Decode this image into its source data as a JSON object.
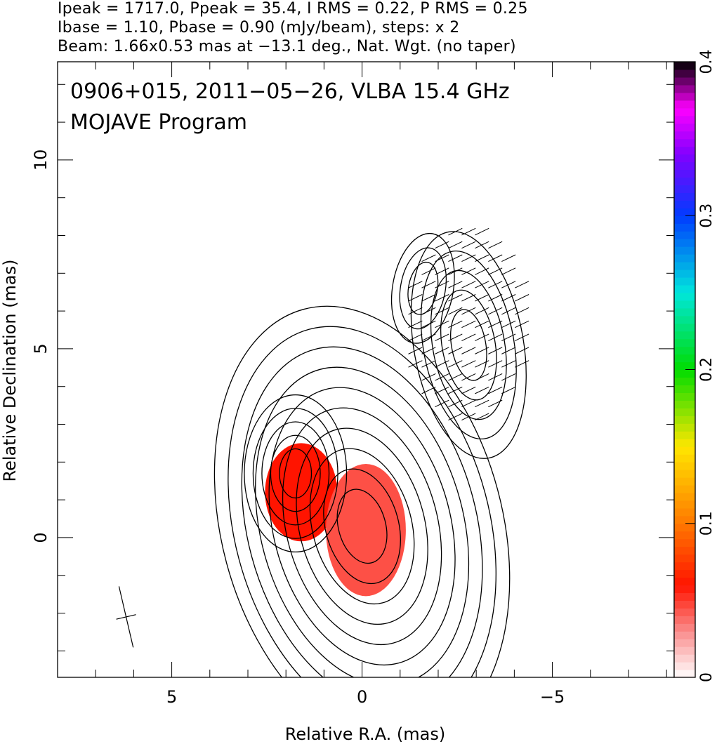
{
  "header": {
    "line1": "Ipeak = 1717.0, Ppeak = 35.4, I RMS = 0.22, P RMS = 0.25",
    "line2": "Ibase = 1.10, Pbase = 0.90 (mJy/beam), steps: x 2",
    "line3": "Beam: 1.66x0.53 mas at −13.1 deg., Nat. Wgt. (no taper)"
  },
  "chart_data": {
    "type": "heatmap",
    "title": "0906+015, 2011−05−26, VLBA 15.4 GHz",
    "subtitle": "MOJAVE Program",
    "xlabel": "Relative R.A. (mas)",
    "ylabel": "Relative Declination (mas)",
    "xlim": [
      8.0,
      -8.2
    ],
    "ylim": [
      -3.7,
      12.6
    ],
    "xticks": [
      5,
      0,
      -5
    ],
    "xtick_labels": [
      "5",
      "0",
      "−5"
    ],
    "yticks": [
      0,
      5,
      10
    ],
    "ytick_labels": [
      "0",
      "5",
      "10"
    ],
    "colorbar": {
      "range": [
        0,
        0.4
      ],
      "ticks": [
        0,
        0.1,
        0.2,
        0.3,
        0.4
      ],
      "tick_labels": [
        "0",
        "0.1",
        "0.2",
        "0.3",
        "0.4"
      ]
    },
    "beam": {
      "major_mas": 1.66,
      "minor_mas": 0.53,
      "pa_deg": -13.1,
      "center": [
        6.2,
        -2.1
      ]
    },
    "components": [
      {
        "ra": 0.0,
        "dec": 0.3,
        "sx": 0.62,
        "sy": 1.0,
        "rot_deg": -15,
        "levels": 10
      },
      {
        "ra": 1.75,
        "dec": 1.7,
        "sx": 0.42,
        "sy": 0.65,
        "rot_deg": 0,
        "levels": 5
      },
      {
        "ra": -2.8,
        "dec": 5.1,
        "sx": 0.45,
        "sy": 0.95,
        "rot_deg": -10,
        "levels": 5
      },
      {
        "ra": -1.6,
        "dec": 6.6,
        "sx": 0.38,
        "sy": 0.7,
        "rot_deg": 10,
        "levels": 3
      }
    ],
    "fractional_pol_regions": [
      {
        "ra": 1.6,
        "dec": 1.2,
        "rx": 0.95,
        "ry": 1.3,
        "value": 0.06
      },
      {
        "ra": -0.1,
        "dec": 0.2,
        "rx": 1.05,
        "ry": 1.75,
        "value": 0.045
      }
    ]
  }
}
